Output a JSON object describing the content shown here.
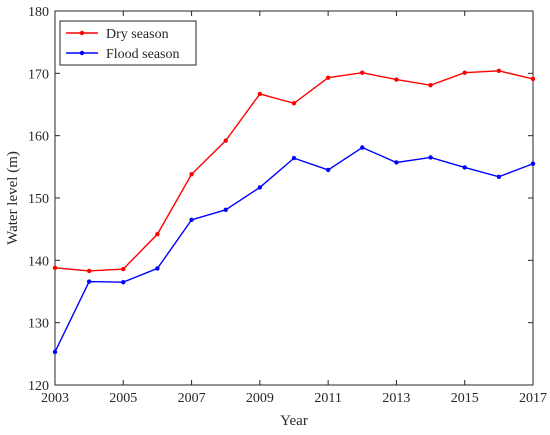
{
  "chart_data": {
    "type": "line",
    "xlabel": "Year",
    "ylabel": "Water level (m)",
    "xlim": [
      2003,
      2017
    ],
    "ylim": [
      120,
      180
    ],
    "x_ticks": [
      "2003",
      "2005",
      "2007",
      "2009",
      "2011",
      "2013",
      "2015",
      "2017"
    ],
    "y_ticks": [
      "120",
      "130",
      "140",
      "150",
      "160",
      "170",
      "180"
    ],
    "x": [
      2003,
      2004,
      2005,
      2006,
      2007,
      2008,
      2009,
      2010,
      2011,
      2012,
      2013,
      2014,
      2015,
      2016,
      2017
    ],
    "series": [
      {
        "name": "Dry season",
        "color": "#ff0000",
        "values": [
          138.8,
          138.3,
          138.6,
          144.2,
          153.8,
          159.2,
          166.7,
          165.2,
          169.3,
          170.1,
          169.0,
          168.1,
          170.1,
          170.4,
          169.1
        ]
      },
      {
        "name": "Flood season",
        "color": "#0000ff",
        "values": [
          125.3,
          136.6,
          136.5,
          138.7,
          146.5,
          148.1,
          151.7,
          156.4,
          154.5,
          158.1,
          155.7,
          156.5,
          154.9,
          153.4,
          155.5
        ]
      }
    ],
    "grid": false,
    "legend_position": "top-left"
  }
}
